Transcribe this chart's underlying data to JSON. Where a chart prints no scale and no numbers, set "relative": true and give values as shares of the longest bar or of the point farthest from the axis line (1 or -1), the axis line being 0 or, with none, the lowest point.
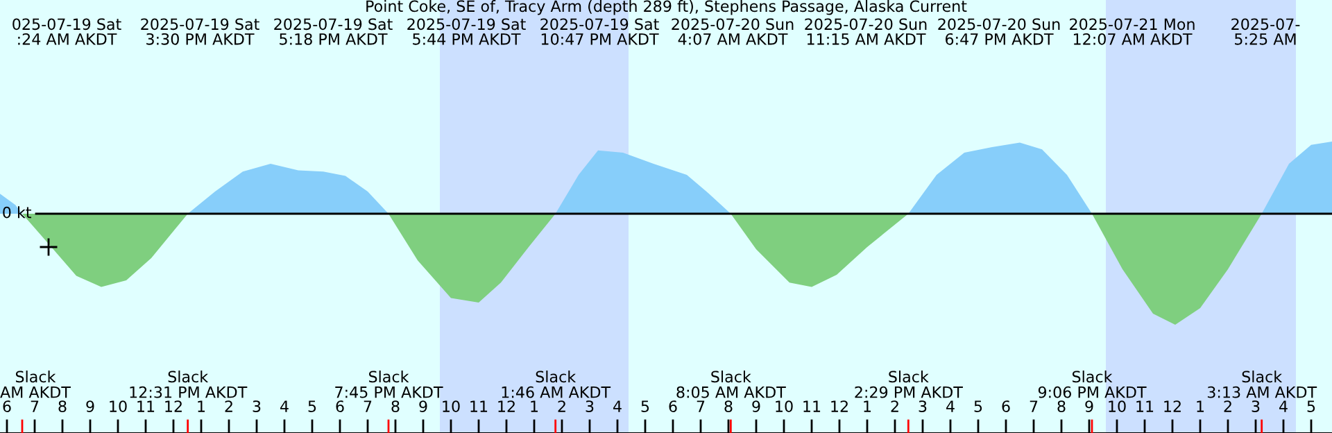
{
  "chart_data": {
    "type": "area",
    "relative": true,
    "title": "Point Coke, SE of, Tracy Arm (depth 289 ft), Stephens Passage, Alaska Current",
    "x": [
      "2025-07-19T05:45",
      "2025-07-19T06:18",
      "2025-07-19T06:33",
      "2025-07-19T07:36",
      "2025-07-19T08:30",
      "2025-07-19T09:24",
      "2025-07-19T10:18",
      "2025-07-19T11:12",
      "2025-07-19T12:31",
      "2025-07-19T13:30",
      "2025-07-19T14:30",
      "2025-07-19T15:30",
      "2025-07-19T16:30",
      "2025-07-19T17:24",
      "2025-07-19T18:12",
      "2025-07-19T19:00",
      "2025-07-19T19:45",
      "2025-07-19T20:48",
      "2025-07-19T22:00",
      "2025-07-19T23:00",
      "2025-07-19T23:48",
      "2025-07-20T00:48",
      "2025-07-20T01:46",
      "2025-07-20T02:36",
      "2025-07-20T03:18",
      "2025-07-20T04:12",
      "2025-07-20T05:18",
      "2025-07-20T06:30",
      "2025-07-20T07:18",
      "2025-07-20T08:05",
      "2025-07-20T09:00",
      "2025-07-20T10:12",
      "2025-07-20T11:00",
      "2025-07-20T11:54",
      "2025-07-20T13:00",
      "2025-07-20T14:29",
      "2025-07-20T15:30",
      "2025-07-20T16:30",
      "2025-07-20T17:30",
      "2025-07-20T18:30",
      "2025-07-20T19:18",
      "2025-07-20T20:12",
      "2025-07-20T21:06",
      "2025-07-20T22:12",
      "2025-07-20T23:18",
      "2025-07-21T00:06",
      "2025-07-21T01:00",
      "2025-07-21T02:00",
      "2025-07-21T03:13",
      "2025-07-21T04:12",
      "2025-07-21T05:00",
      "2025-07-21T05:45"
    ],
    "xlim": [
      "2025-07-19T05:45",
      "2025-07-21T05:45"
    ],
    "xticks": [
      {
        "value": "2025-07-19T06:00",
        "label": "6"
      },
      {
        "value": "2025-07-19T07:00",
        "label": "7"
      },
      {
        "value": "2025-07-19T08:00",
        "label": "8"
      },
      {
        "value": "2025-07-19T09:00",
        "label": "9"
      },
      {
        "value": "2025-07-19T10:00",
        "label": "10"
      },
      {
        "value": "2025-07-19T11:00",
        "label": "11"
      },
      {
        "value": "2025-07-19T12:00",
        "label": "12"
      },
      {
        "value": "2025-07-19T13:00",
        "label": "1"
      },
      {
        "value": "2025-07-19T14:00",
        "label": "2"
      },
      {
        "value": "2025-07-19T15:00",
        "label": "3"
      },
      {
        "value": "2025-07-19T16:00",
        "label": "4"
      },
      {
        "value": "2025-07-19T17:00",
        "label": "5"
      },
      {
        "value": "2025-07-19T18:00",
        "label": "6"
      },
      {
        "value": "2025-07-19T19:00",
        "label": "7"
      },
      {
        "value": "2025-07-19T20:00",
        "label": "8"
      },
      {
        "value": "2025-07-19T21:00",
        "label": "9"
      },
      {
        "value": "2025-07-19T22:00",
        "label": "10"
      },
      {
        "value": "2025-07-19T23:00",
        "label": "11"
      },
      {
        "value": "2025-07-20T00:00",
        "label": "12"
      },
      {
        "value": "2025-07-20T01:00",
        "label": "1"
      },
      {
        "value": "2025-07-20T02:00",
        "label": "2"
      },
      {
        "value": "2025-07-20T03:00",
        "label": "3"
      },
      {
        "value": "2025-07-20T04:00",
        "label": "4"
      },
      {
        "value": "2025-07-20T05:00",
        "label": "5"
      },
      {
        "value": "2025-07-20T06:00",
        "label": "6"
      },
      {
        "value": "2025-07-20T07:00",
        "label": "7"
      },
      {
        "value": "2025-07-20T08:00",
        "label": "8"
      },
      {
        "value": "2025-07-20T09:00",
        "label": "9"
      },
      {
        "value": "2025-07-20T10:00",
        "label": "10"
      },
      {
        "value": "2025-07-20T11:00",
        "label": "11"
      },
      {
        "value": "2025-07-20T12:00",
        "label": "12"
      },
      {
        "value": "2025-07-20T13:00",
        "label": "1"
      },
      {
        "value": "2025-07-20T14:00",
        "label": "2"
      },
      {
        "value": "2025-07-20T15:00",
        "label": "3"
      },
      {
        "value": "2025-07-20T16:00",
        "label": "4"
      },
      {
        "value": "2025-07-20T17:00",
        "label": "5"
      },
      {
        "value": "2025-07-20T18:00",
        "label": "6"
      },
      {
        "value": "2025-07-20T19:00",
        "label": "7"
      },
      {
        "value": "2025-07-20T20:00",
        "label": "8"
      },
      {
        "value": "2025-07-20T21:00",
        "label": "9"
      },
      {
        "value": "2025-07-20T22:00",
        "label": "10"
      },
      {
        "value": "2025-07-20T23:00",
        "label": "11"
      },
      {
        "value": "2025-07-21T00:00",
        "label": "12"
      },
      {
        "value": "2025-07-21T01:00",
        "label": "1"
      },
      {
        "value": "2025-07-21T02:00",
        "label": "2"
      },
      {
        "value": "2025-07-21T03:00",
        "label": "3"
      },
      {
        "value": "2025-07-21T04:00",
        "label": "4"
      },
      {
        "value": "2025-07-21T05:00",
        "label": "5"
      }
    ],
    "series": [
      {
        "color": "#87cefa",
        "values": [
          0.18,
          0.08,
          0,
          null,
          null,
          null,
          null,
          null,
          0,
          0.2,
          0.38,
          0.45,
          0.39,
          0.38,
          0.34,
          0.2,
          0,
          null,
          null,
          null,
          null,
          null,
          0,
          0.35,
          0.57,
          0.55,
          0.45,
          0.35,
          0.18,
          0,
          null,
          null,
          null,
          null,
          null,
          0,
          0.35,
          0.55,
          0.6,
          0.64,
          0.58,
          0.35,
          0,
          null,
          null,
          null,
          null,
          null,
          0,
          0.45,
          0.62,
          0.65
        ]
      },
      {
        "color": "#7fcf7f",
        "values": [
          null,
          null,
          0,
          -0.3,
          -0.56,
          -0.66,
          -0.6,
          -0.4,
          0,
          null,
          null,
          null,
          null,
          null,
          null,
          null,
          0,
          -0.42,
          -0.76,
          -0.8,
          -0.62,
          -0.3,
          0,
          null,
          null,
          null,
          null,
          null,
          null,
          0,
          -0.32,
          -0.62,
          -0.66,
          -0.55,
          -0.3,
          0,
          null,
          null,
          null,
          null,
          null,
          null,
          0,
          -0.5,
          -0.9,
          -1,
          -0.85,
          -0.5,
          0,
          null,
          null,
          null
        ]
      },
      {
        "type": "scatter",
        "x": [
          "2025-07-19T07:30"
        ],
        "values": [
          -0.3
        ],
        "color": "#000000",
        "marker": "cross"
      }
    ],
    "ref_lines": [
      {
        "axis": "y",
        "value": 0,
        "label": "0 kt",
        "color": "#000000"
      }
    ],
    "bands": [
      {
        "axis": "x",
        "from": "2025-07-19T21:36",
        "to": "2025-07-20T04:24",
        "color": "#cce0ff"
      },
      {
        "axis": "x",
        "from": "2025-07-20T21:36",
        "to": "2025-07-21T04:27",
        "color": "#cce0ff"
      }
    ],
    "annotations": [
      "025-07-19 Sat\n:24 AM AKDT",
      "2025-07-19 Sat\n3:30 PM AKDT",
      "2025-07-19 Sat\n5:18 PM AKDT",
      "2025-07-19 Sat\n5:44 PM AKDT",
      "2025-07-19 Sat\n10:47 PM AKDT",
      "2025-07-20 Sun\n4:07 AM AKDT",
      "2025-07-20 Sun\n11:15 AM AKDT",
      "2025-07-20 Sun\n6:47 PM AKDT",
      "2025-07-21 Mon\n12:07 AM AKDT",
      "2025-07-\n5:25 AM",
      "Slack\nAM AKDT",
      "Slack\n12:31 PM AKDT",
      "Slack\n7:45 PM AKDT",
      "Slack\n1:46 AM AKDT",
      "Slack\n8:05 AM AKDT",
      "Slack\n2:29 PM AKDT",
      "Slack\n9:06 PM AKDT",
      "Slack\n3:13 AM AKDT"
    ]
  }
}
